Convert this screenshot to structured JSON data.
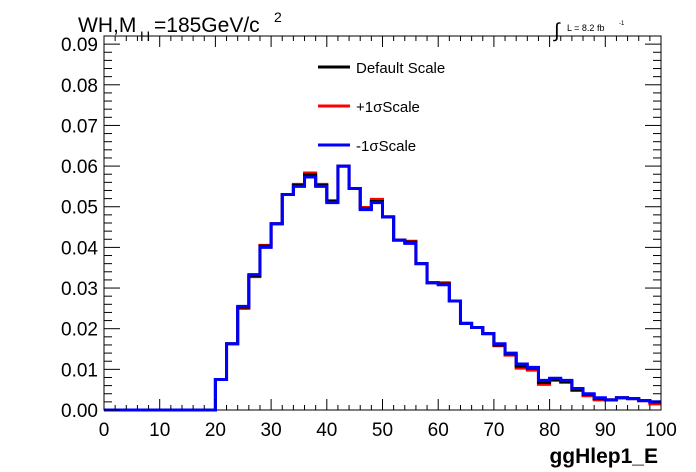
{
  "chart_data": {
    "type": "line",
    "title_main": "WH,M",
    "title_sub": "H",
    "title_rest": "=185GeV/c",
    "title_sup": "2",
    "lumi_label": "L = 8.2 fb",
    "lumi_sup": "-1",
    "lumi_integral": "∫",
    "xlabel": "ggHlep1_E",
    "ylabel": "",
    "xlim": [
      0,
      100
    ],
    "ylim": [
      0,
      0.092
    ],
    "x_ticks": [
      0,
      10,
      20,
      30,
      40,
      50,
      60,
      70,
      80,
      90,
      100
    ],
    "x_tick_labels": [
      "0",
      "10",
      "20",
      "30",
      "40",
      "50",
      "60",
      "70",
      "80",
      "90",
      "100"
    ],
    "y_ticks": [
      0,
      0.01,
      0.02,
      0.03,
      0.04,
      0.05,
      0.06,
      0.07,
      0.08,
      0.09
    ],
    "y_tick_labels": [
      "0.00",
      "0.01",
      "0.02",
      "0.03",
      "0.04",
      "0.05",
      "0.06",
      "0.07",
      "0.08",
      "0.09"
    ],
    "bin_width": 2,
    "bin_edges_start": 0,
    "legend_position": "top-center",
    "grid": false,
    "series": [
      {
        "name": "Default Scale",
        "color": "#000000",
        "values": [
          0,
          0,
          0,
          0,
          0,
          0,
          0,
          0,
          0,
          0,
          0.0075,
          0.0163,
          0.0253,
          0.033,
          0.0403,
          0.0458,
          0.053,
          0.0553,
          0.0578,
          0.0553,
          0.0513,
          0.06,
          0.0545,
          0.0495,
          0.0513,
          0.0475,
          0.0418,
          0.0413,
          0.036,
          0.0313,
          0.031,
          0.0268,
          0.0213,
          0.0203,
          0.0188,
          0.016,
          0.0138,
          0.0108,
          0.0103,
          0.0068,
          0.0075,
          0.007,
          0.005,
          0.0038,
          0.0028,
          0.0025,
          0.003,
          0.0028,
          0.0023,
          0.002
        ]
      },
      {
        "name": "+1σScale",
        "color": "#ff0000",
        "values": [
          0,
          0,
          0,
          0,
          0,
          0,
          0,
          0,
          0,
          0,
          0.0075,
          0.0163,
          0.025,
          0.0328,
          0.0405,
          0.0458,
          0.053,
          0.0555,
          0.0583,
          0.0555,
          0.0515,
          0.06,
          0.0545,
          0.0498,
          0.0518,
          0.0475,
          0.0418,
          0.0415,
          0.036,
          0.0313,
          0.0313,
          0.0268,
          0.0213,
          0.0203,
          0.0188,
          0.0158,
          0.0135,
          0.0103,
          0.0098,
          0.0063,
          0.0073,
          0.0068,
          0.0048,
          0.0035,
          0.0025,
          0.0025,
          0.003,
          0.0028,
          0.0023,
          0.0015
        ]
      },
      {
        "name": "-1σScale",
        "color": "#0000ff",
        "values": [
          0,
          0,
          0,
          0,
          0,
          0,
          0,
          0,
          0,
          0,
          0.0075,
          0.0163,
          0.0255,
          0.0333,
          0.04,
          0.0458,
          0.053,
          0.055,
          0.0573,
          0.055,
          0.051,
          0.06,
          0.0545,
          0.0493,
          0.051,
          0.0475,
          0.0418,
          0.041,
          0.036,
          0.0313,
          0.0308,
          0.0268,
          0.0213,
          0.0203,
          0.0188,
          0.0163,
          0.014,
          0.0113,
          0.0105,
          0.0073,
          0.0078,
          0.0073,
          0.0053,
          0.004,
          0.003,
          0.0025,
          0.003,
          0.0028,
          0.0023,
          0.002
        ]
      }
    ]
  }
}
